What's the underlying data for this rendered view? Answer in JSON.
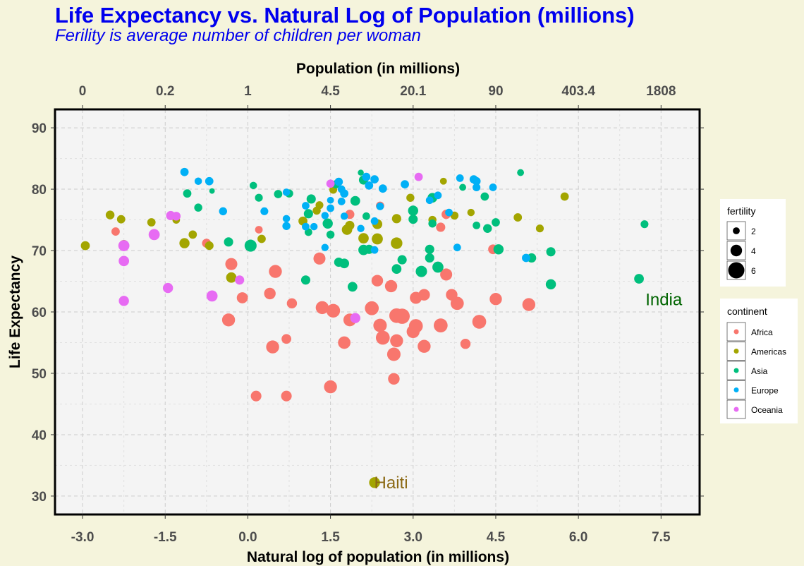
{
  "chart_data": {
    "type": "scatter",
    "title": "Life Expectancy vs. Natural Log of Population (millions)",
    "subtitle": "Ferility is average number of children per woman",
    "xlabel": "Natural log of population (in millions)",
    "ylabel": "Life Expectancy",
    "x2label": "Population (in millions)",
    "xlim": [
      -3.5,
      8.2
    ],
    "ylim": [
      27,
      93
    ],
    "x_ticks": [
      -3.0,
      -1.5,
      0.0,
      1.5,
      3.0,
      4.5,
      6.0,
      7.5
    ],
    "x_tick_labels": [
      "-3.0",
      "-1.5",
      "0.0",
      "1.5",
      "3.0",
      "4.5",
      "6.0",
      "7.5"
    ],
    "x2_tick_labels": [
      "0",
      "0.2",
      "1",
      "4.5",
      "20.1",
      "90",
      "403.4",
      "1808"
    ],
    "y_ticks": [
      30,
      40,
      50,
      60,
      70,
      80,
      90
    ],
    "y_tick_labels": [
      "30",
      "40",
      "50",
      "60",
      "70",
      "80",
      "90"
    ],
    "grid": true,
    "legend_position": "right",
    "size_legend": {
      "title": "fertility",
      "entries": [
        {
          "label": "2",
          "value": 2
        },
        {
          "label": "4",
          "value": 4
        },
        {
          "label": "6",
          "value": 6
        }
      ]
    },
    "color_legend": {
      "title": "continent",
      "entries": [
        {
          "label": "Africa",
          "color": "#f8766d"
        },
        {
          "label": "Americas",
          "color": "#a3a500"
        },
        {
          "label": "Asia",
          "color": "#00bf7d"
        },
        {
          "label": "Europe",
          "color": "#00b0f6"
        },
        {
          "label": "Oceania",
          "color": "#e76bf3"
        }
      ]
    },
    "annotations": [
      {
        "text": "India",
        "x": 7.55,
        "y": 62,
        "color": "#006400"
      },
      {
        "text": "Haiti",
        "x": 2.6,
        "y": 32.2,
        "color": "#8b6914"
      }
    ],
    "series": [
      {
        "name": "Africa",
        "color": "#f8766d",
        "points": [
          {
            "x": -2.4,
            "y": 73.1,
            "f": 2.6
          },
          {
            "x": 0.2,
            "y": 73.4,
            "f": 2.3
          },
          {
            "x": -0.75,
            "y": 71.2,
            "f": 2.9
          },
          {
            "x": -0.3,
            "y": 67.8,
            "f": 4.2
          },
          {
            "x": 0.5,
            "y": 66.6,
            "f": 4.6
          },
          {
            "x": -0.35,
            "y": 58.7,
            "f": 4.6
          },
          {
            "x": -0.1,
            "y": 62.3,
            "f": 3.8
          },
          {
            "x": 0.45,
            "y": 54.3,
            "f": 4.6
          },
          {
            "x": 0.7,
            "y": 55.6,
            "f": 3.2
          },
          {
            "x": 0.4,
            "y": 63.0,
            "f": 4.0
          },
          {
            "x": 0.8,
            "y": 61.4,
            "f": 3.4
          },
          {
            "x": 0.15,
            "y": 46.3,
            "f": 3.6
          },
          {
            "x": 0.7,
            "y": 46.3,
            "f": 3.6
          },
          {
            "x": 1.3,
            "y": 68.7,
            "f": 4.2
          },
          {
            "x": 1.35,
            "y": 60.7,
            "f": 4.6
          },
          {
            "x": 1.55,
            "y": 60.2,
            "f": 4.9
          },
          {
            "x": 1.5,
            "y": 47.8,
            "f": 4.6
          },
          {
            "x": 1.75,
            "y": 55.0,
            "f": 4.4
          },
          {
            "x": 1.85,
            "y": 58.7,
            "f": 4.5
          },
          {
            "x": 1.85,
            "y": 75.9,
            "f": 3.0
          },
          {
            "x": 2.25,
            "y": 60.6,
            "f": 5.0
          },
          {
            "x": 2.35,
            "y": 65.1,
            "f": 4.0
          },
          {
            "x": 2.4,
            "y": 57.8,
            "f": 4.8
          },
          {
            "x": 2.45,
            "y": 55.8,
            "f": 5.0
          },
          {
            "x": 2.6,
            "y": 64.2,
            "f": 4.3
          },
          {
            "x": 2.65,
            "y": 53.1,
            "f": 4.8
          },
          {
            "x": 2.65,
            "y": 49.1,
            "f": 4.0
          },
          {
            "x": 2.7,
            "y": 59.4,
            "f": 5.3
          },
          {
            "x": 2.8,
            "y": 59.3,
            "f": 5.6
          },
          {
            "x": 2.7,
            "y": 55.3,
            "f": 4.6
          },
          {
            "x": 3.0,
            "y": 56.8,
            "f": 4.6
          },
          {
            "x": 3.05,
            "y": 57.7,
            "f": 5.0
          },
          {
            "x": 3.05,
            "y": 62.3,
            "f": 4.2
          },
          {
            "x": 3.2,
            "y": 62.8,
            "f": 4.0
          },
          {
            "x": 3.2,
            "y": 54.4,
            "f": 4.6
          },
          {
            "x": 3.5,
            "y": 73.8,
            "f": 3.0
          },
          {
            "x": 3.5,
            "y": 57.8,
            "f": 5.0
          },
          {
            "x": 3.6,
            "y": 66.1,
            "f": 4.2
          },
          {
            "x": 3.6,
            "y": 75.9,
            "f": 3.0
          },
          {
            "x": 3.7,
            "y": 62.8,
            "f": 4.0
          },
          {
            "x": 3.8,
            "y": 61.4,
            "f": 4.7
          },
          {
            "x": 3.95,
            "y": 54.8,
            "f": 3.4
          },
          {
            "x": 4.2,
            "y": 58.4,
            "f": 5.0
          },
          {
            "x": 4.45,
            "y": 70.2,
            "f": 3.2
          },
          {
            "x": 4.5,
            "y": 62.1,
            "f": 4.3
          },
          {
            "x": 5.1,
            "y": 61.2,
            "f": 4.6
          },
          {
            "x": 2.4,
            "y": 77.3,
            "f": 2.6
          }
        ]
      },
      {
        "name": "Americas",
        "color": "#a3a500",
        "points": [
          {
            "x": -2.95,
            "y": 70.8,
            "f": 2.9
          },
          {
            "x": -2.5,
            "y": 75.8,
            "f": 2.8
          },
          {
            "x": -2.3,
            "y": 75.1,
            "f": 2.6
          },
          {
            "x": -2.25,
            "y": 71.0,
            "f": 2.9
          },
          {
            "x": -1.75,
            "y": 74.6,
            "f": 2.6
          },
          {
            "x": -1.3,
            "y": 75.0,
            "f": 2.3
          },
          {
            "x": -1.15,
            "y": 71.2,
            "f": 3.4
          },
          {
            "x": -1.0,
            "y": 72.6,
            "f": 2.6
          },
          {
            "x": -0.7,
            "y": 70.8,
            "f": 2.7
          },
          {
            "x": -0.3,
            "y": 65.6,
            "f": 3.5
          },
          {
            "x": 0.25,
            "y": 71.9,
            "f": 2.6
          },
          {
            "x": 1.0,
            "y": 74.8,
            "f": 2.9
          },
          {
            "x": 1.3,
            "y": 77.4,
            "f": 2.4
          },
          {
            "x": 1.25,
            "y": 76.5,
            "f": 2.5
          },
          {
            "x": 1.55,
            "y": 79.9,
            "f": 2.4
          },
          {
            "x": 1.8,
            "y": 73.4,
            "f": 3.5
          },
          {
            "x": 1.85,
            "y": 74.1,
            "f": 3.0
          },
          {
            "x": 2.1,
            "y": 72.0,
            "f": 3.5
          },
          {
            "x": 2.35,
            "y": 71.9,
            "f": 3.8
          },
          {
            "x": 2.35,
            "y": 74.3,
            "f": 3.3
          },
          {
            "x": 2.3,
            "y": 32.2,
            "f": 3.7
          },
          {
            "x": 2.7,
            "y": 75.2,
            "f": 3.0
          },
          {
            "x": 2.7,
            "y": 71.2,
            "f": 4.0
          },
          {
            "x": 2.95,
            "y": 78.6,
            "f": 2.5
          },
          {
            "x": 3.35,
            "y": 75.0,
            "f": 2.5
          },
          {
            "x": 3.55,
            "y": 81.3,
            "f": 2.0
          },
          {
            "x": 3.75,
            "y": 75.7,
            "f": 2.5
          },
          {
            "x": 4.05,
            "y": 76.2,
            "f": 2.2
          },
          {
            "x": 4.9,
            "y": 75.4,
            "f": 2.6
          },
          {
            "x": 5.3,
            "y": 73.6,
            "f": 2.4
          },
          {
            "x": 5.75,
            "y": 78.8,
            "f": 2.6
          }
        ]
      },
      {
        "name": "Asia",
        "color": "#00bf7d",
        "points": [
          {
            "x": 0.05,
            "y": 70.8,
            "f": 4.2
          },
          {
            "x": 0.1,
            "y": 80.6,
            "f": 2.2
          },
          {
            "x": 0.2,
            "y": 78.6,
            "f": 2.4
          },
          {
            "x": -1.1,
            "y": 79.3,
            "f": 2.6
          },
          {
            "x": -0.9,
            "y": 77.0,
            "f": 2.5
          },
          {
            "x": -0.65,
            "y": 79.7,
            "f": 1.4
          },
          {
            "x": -0.35,
            "y": 71.4,
            "f": 3.0
          },
          {
            "x": 0.55,
            "y": 79.2,
            "f": 2.6
          },
          {
            "x": 0.75,
            "y": 79.3,
            "f": 2.5
          },
          {
            "x": 1.1,
            "y": 76.0,
            "f": 3.0
          },
          {
            "x": 1.15,
            "y": 78.4,
            "f": 3.0
          },
          {
            "x": 1.05,
            "y": 65.2,
            "f": 3.0
          },
          {
            "x": 1.1,
            "y": 73.0,
            "f": 2.3
          },
          {
            "x": 1.45,
            "y": 74.4,
            "f": 3.4
          },
          {
            "x": 1.5,
            "y": 72.6,
            "f": 2.5
          },
          {
            "x": 1.6,
            "y": 80.8,
            "f": 2.6
          },
          {
            "x": 1.65,
            "y": 68.1,
            "f": 3.0
          },
          {
            "x": 1.75,
            "y": 67.9,
            "f": 3.2
          },
          {
            "x": 1.9,
            "y": 64.1,
            "f": 3.2
          },
          {
            "x": 1.95,
            "y": 78.1,
            "f": 3.2
          },
          {
            "x": 2.05,
            "y": 82.7,
            "f": 1.6
          },
          {
            "x": 2.1,
            "y": 70.1,
            "f": 3.5
          },
          {
            "x": 2.2,
            "y": 70.2,
            "f": 3.0
          },
          {
            "x": 2.15,
            "y": 75.6,
            "f": 2.3
          },
          {
            "x": 2.1,
            "y": 81.5,
            "f": 3.0
          },
          {
            "x": 2.7,
            "y": 67.0,
            "f": 3.2
          },
          {
            "x": 2.8,
            "y": 68.5,
            "f": 3.0
          },
          {
            "x": 3.0,
            "y": 75.1,
            "f": 3.0
          },
          {
            "x": 3.0,
            "y": 76.5,
            "f": 3.4
          },
          {
            "x": 3.15,
            "y": 66.6,
            "f": 3.9
          },
          {
            "x": 3.3,
            "y": 70.2,
            "f": 3.0
          },
          {
            "x": 3.3,
            "y": 68.8,
            "f": 3.0
          },
          {
            "x": 3.35,
            "y": 78.6,
            "f": 3.2
          },
          {
            "x": 3.45,
            "y": 67.3,
            "f": 3.8
          },
          {
            "x": 3.35,
            "y": 74.4,
            "f": 2.5
          },
          {
            "x": 3.9,
            "y": 80.3,
            "f": 2.0
          },
          {
            "x": 4.15,
            "y": 74.1,
            "f": 2.3
          },
          {
            "x": 4.35,
            "y": 73.6,
            "f": 2.8
          },
          {
            "x": 4.3,
            "y": 78.8,
            "f": 2.6
          },
          {
            "x": 4.5,
            "y": 74.6,
            "f": 2.6
          },
          {
            "x": 4.55,
            "y": 70.2,
            "f": 3.4
          },
          {
            "x": 4.95,
            "y": 82.7,
            "f": 2.0
          },
          {
            "x": 5.15,
            "y": 68.8,
            "f": 3.0
          },
          {
            "x": 5.5,
            "y": 69.8,
            "f": 3.0
          },
          {
            "x": 5.5,
            "y": 64.5,
            "f": 3.4
          },
          {
            "x": 7.1,
            "y": 65.4,
            "f": 3.2
          },
          {
            "x": 7.2,
            "y": 74.3,
            "f": 2.4
          }
        ]
      },
      {
        "name": "Europe",
        "color": "#00b0f6",
        "points": [
          {
            "x": -1.15,
            "y": 82.8,
            "f": 2.6
          },
          {
            "x": -0.9,
            "y": 81.3,
            "f": 2.2
          },
          {
            "x": -0.7,
            "y": 81.3,
            "f": 2.6
          },
          {
            "x": -0.45,
            "y": 76.4,
            "f": 2.5
          },
          {
            "x": 0.3,
            "y": 76.4,
            "f": 2.4
          },
          {
            "x": 0.7,
            "y": 79.5,
            "f": 2.2
          },
          {
            "x": 0.7,
            "y": 75.2,
            "f": 2.2
          },
          {
            "x": 0.7,
            "y": 74.0,
            "f": 2.5
          },
          {
            "x": 1.05,
            "y": 77.3,
            "f": 2.3
          },
          {
            "x": 1.05,
            "y": 73.9,
            "f": 2.3
          },
          {
            "x": 1.2,
            "y": 73.9,
            "f": 2.2
          },
          {
            "x": 1.4,
            "y": 75.7,
            "f": 2.2
          },
          {
            "x": 1.4,
            "y": 70.5,
            "f": 2.2
          },
          {
            "x": 1.5,
            "y": 78.2,
            "f": 2.0
          },
          {
            "x": 1.5,
            "y": 76.9,
            "f": 2.3
          },
          {
            "x": 1.65,
            "y": 81.2,
            "f": 2.6
          },
          {
            "x": 1.7,
            "y": 80.0,
            "f": 2.3
          },
          {
            "x": 1.7,
            "y": 78.0,
            "f": 2.3
          },
          {
            "x": 1.75,
            "y": 79.3,
            "f": 2.6
          },
          {
            "x": 1.75,
            "y": 75.6,
            "f": 2.2
          },
          {
            "x": 2.05,
            "y": 73.6,
            "f": 2.2
          },
          {
            "x": 2.15,
            "y": 82.0,
            "f": 2.6
          },
          {
            "x": 2.2,
            "y": 80.6,
            "f": 2.6
          },
          {
            "x": 2.3,
            "y": 74.8,
            "f": 2.3
          },
          {
            "x": 2.3,
            "y": 81.6,
            "f": 2.6
          },
          {
            "x": 2.45,
            "y": 80.1,
            "f": 2.6
          },
          {
            "x": 2.3,
            "y": 70.1,
            "f": 2.3
          },
          {
            "x": 2.4,
            "y": 77.2,
            "f": 2.3
          },
          {
            "x": 2.85,
            "y": 80.8,
            "f": 2.6
          },
          {
            "x": 3.3,
            "y": 78.2,
            "f": 2.3
          },
          {
            "x": 3.45,
            "y": 79.0,
            "f": 2.3
          },
          {
            "x": 3.65,
            "y": 76.2,
            "f": 2.3
          },
          {
            "x": 3.8,
            "y": 70.5,
            "f": 2.3
          },
          {
            "x": 3.85,
            "y": 81.8,
            "f": 2.3
          },
          {
            "x": 4.1,
            "y": 81.6,
            "f": 2.6
          },
          {
            "x": 4.15,
            "y": 81.3,
            "f": 2.6
          },
          {
            "x": 4.15,
            "y": 80.3,
            "f": 2.4
          },
          {
            "x": 4.45,
            "y": 80.3,
            "f": 2.3
          },
          {
            "x": 5.05,
            "y": 68.8,
            "f": 2.6
          }
        ]
      },
      {
        "name": "Oceania",
        "color": "#e76bf3",
        "points": [
          {
            "x": -2.25,
            "y": 70.8,
            "f": 3.8
          },
          {
            "x": -2.25,
            "y": 68.3,
            "f": 3.5
          },
          {
            "x": -2.25,
            "y": 61.8,
            "f": 3.4
          },
          {
            "x": -1.7,
            "y": 72.6,
            "f": 3.8
          },
          {
            "x": -1.4,
            "y": 75.7,
            "f": 3.0
          },
          {
            "x": -1.3,
            "y": 75.6,
            "f": 2.8
          },
          {
            "x": -1.45,
            "y": 63.9,
            "f": 3.4
          },
          {
            "x": -0.65,
            "y": 62.6,
            "f": 3.8
          },
          {
            "x": -0.15,
            "y": 65.2,
            "f": 3.0
          },
          {
            "x": 1.5,
            "y": 80.9,
            "f": 2.6
          },
          {
            "x": 1.95,
            "y": 59.0,
            "f": 3.4
          },
          {
            "x": 3.1,
            "y": 82.0,
            "f": 2.6
          }
        ]
      }
    ]
  }
}
